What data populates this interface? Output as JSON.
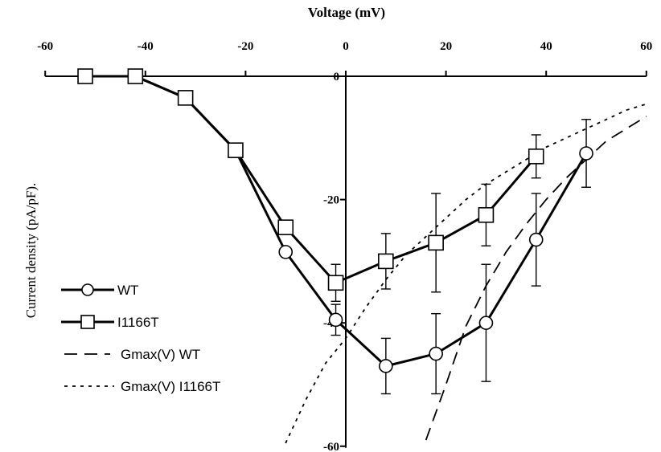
{
  "chart_data": {
    "type": "line",
    "xlabel": "Voltage (mV)",
    "ylabel": "Current density (pA/pF).",
    "xlim": [
      -60,
      60
    ],
    "ylim": [
      -60,
      0
    ],
    "x_ticks": [
      -60,
      -40,
      -20,
      0,
      20,
      40,
      60
    ],
    "y_ticks": [
      0,
      -20,
      -40,
      -60
    ],
    "x_tick_labels": [
      "-60",
      "-40",
      "-20",
      "0",
      "20",
      "40",
      "60"
    ],
    "y_tick_labels": [
      "0",
      "-20",
      "-40",
      "-60"
    ],
    "axis_position": "x axis at top (y = 0), y axis at x = 0",
    "legend_position": "bottom-left",
    "grid": false,
    "series": [
      {
        "name": "WT",
        "style": "solid line with open circle markers",
        "x": [
          -52,
          -42,
          -32,
          -22,
          -12,
          -2,
          8,
          18,
          28,
          38,
          48
        ],
        "y": [
          0,
          0,
          -3.5,
          -12,
          -28.5,
          -39.5,
          -47,
          -45,
          -40,
          -26.5,
          -12.5
        ],
        "error": [
          0,
          0,
          0,
          0,
          0,
          2.5,
          4.5,
          6.5,
          9.5,
          7.5,
          5.5
        ]
      },
      {
        "name": "I1166T",
        "style": "solid line with open square markers",
        "x": [
          -52,
          -42,
          -32,
          -22,
          -12,
          -2,
          8,
          18,
          28,
          38
        ],
        "y": [
          0,
          0,
          -3.5,
          -12,
          -24.5,
          -33.5,
          -30,
          -27,
          -22.5,
          -13
        ],
        "error": [
          0,
          0,
          0,
          0,
          0,
          3,
          4.5,
          8,
          5,
          3.5
        ]
      },
      {
        "name": "Gmax(V) WT",
        "style": "long-dashed line",
        "x": [
          16,
          20,
          24,
          28,
          32,
          36,
          40,
          44,
          48,
          52,
          56,
          60
        ],
        "y": [
          -59,
          -50,
          -40.5,
          -34,
          -28.5,
          -24,
          -20,
          -16.5,
          -13.5,
          -10.5,
          -8.5,
          -6.5
        ]
      },
      {
        "name": "Gmax(V) I1166T",
        "style": "short-dashed line",
        "x": [
          -12,
          -8,
          -4,
          0,
          4,
          8,
          12,
          16,
          20,
          24,
          28,
          32,
          36,
          40,
          44,
          48,
          52,
          56,
          60
        ],
        "y": [
          -59.5,
          -52.5,
          -46.5,
          -42.5,
          -37.5,
          -33,
          -29,
          -26,
          -23,
          -20,
          -17.5,
          -15.5,
          -13.5,
          -11.5,
          -10,
          -8.5,
          -7,
          -5.5,
          -4.5
        ]
      }
    ]
  }
}
